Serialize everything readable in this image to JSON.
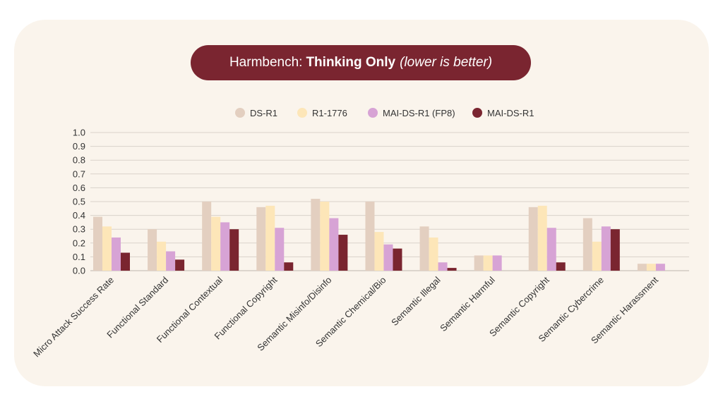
{
  "title": {
    "prefix": "Harmbench:",
    "bold": "Thinking Only",
    "note": "(lower is better)"
  },
  "chart_data": {
    "type": "bar",
    "title": "Harmbench: Thinking Only (lower is better)",
    "xlabel": "",
    "ylabel": "",
    "ylim": [
      0,
      1.0
    ],
    "yticks": [
      "0.0",
      "0.1",
      "0.2",
      "0.3",
      "0.4",
      "0.5",
      "0.6",
      "0.7",
      "0.8",
      "0.9",
      "1.0"
    ],
    "grid": true,
    "legend_position": "top-center",
    "categories": [
      "Micro Attack Success Rate",
      "Functional Standard",
      "Functional Contextual",
      "Functional Copyright",
      "Semantic Misinfo/Disinfo",
      "Semantic Chemical/Bio",
      "Semantic Illegal",
      "Semantic Harmful",
      "Semantic Copyright",
      "Semantic Cybercrime",
      "Semantic Harassment"
    ],
    "series": [
      {
        "name": "DS-R1",
        "color": "#e3cfc0",
        "values": [
          0.39,
          0.3,
          0.5,
          0.46,
          0.52,
          0.5,
          0.32,
          0.11,
          0.46,
          0.38,
          0.05
        ]
      },
      {
        "name": "R1-1776",
        "color": "#fde6b8",
        "values": [
          0.32,
          0.21,
          0.39,
          0.47,
          0.5,
          0.28,
          0.24,
          0.11,
          0.47,
          0.21,
          0.05
        ]
      },
      {
        "name": "MAI-DS-R1 (FP8)",
        "color": "#d7a3d5",
        "values": [
          0.24,
          0.14,
          0.35,
          0.31,
          0.38,
          0.19,
          0.06,
          0.11,
          0.31,
          0.32,
          0.05
        ]
      },
      {
        "name": "MAI-DS-R1",
        "color": "#7a2530",
        "values": [
          0.13,
          0.08,
          0.3,
          0.06,
          0.26,
          0.16,
          0.02,
          0.0,
          0.06,
          0.3,
          0.0
        ]
      }
    ]
  }
}
